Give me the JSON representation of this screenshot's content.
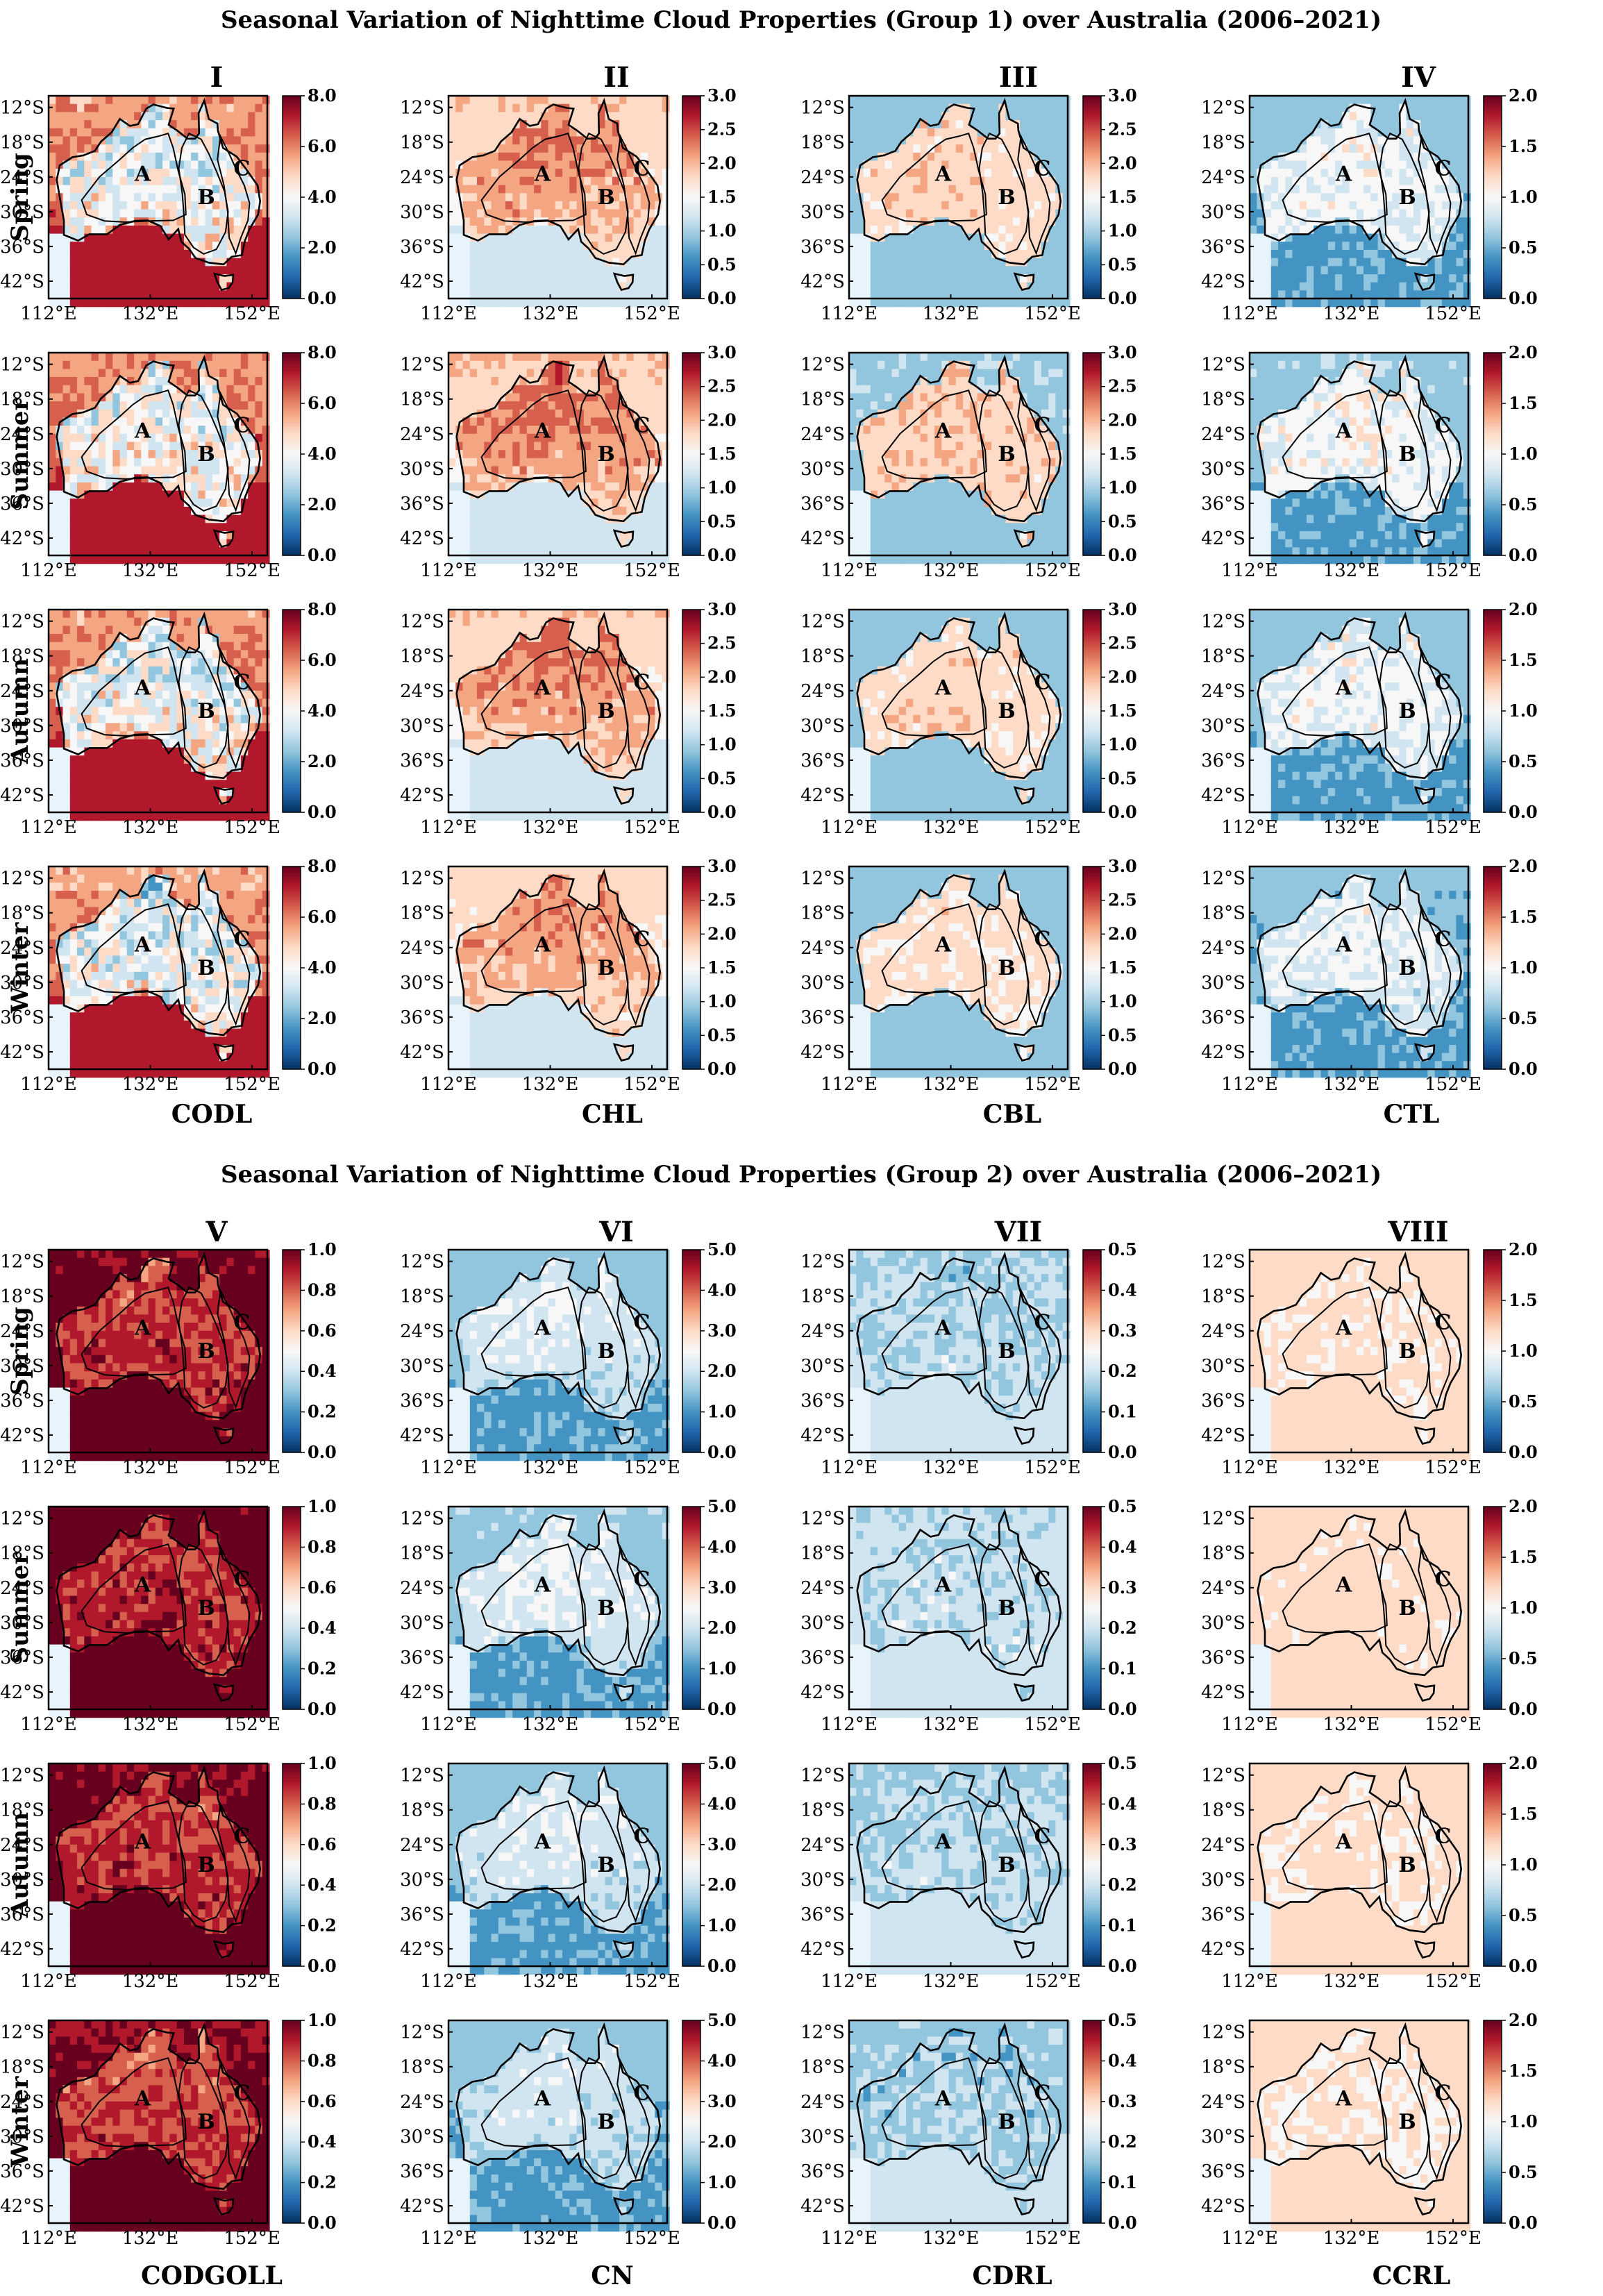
{
  "groups": [
    {
      "title": "Seasonal Variation of Nighttime Cloud Properties (Group 1) over Australia (2006–2021)",
      "panels": [
        {
          "roman": "I",
          "variable": "CODL",
          "cbar_ticks": [
            "0.0",
            "2.0",
            "4.0",
            "6.0",
            "8.0"
          ]
        },
        {
          "roman": "II",
          "variable": "CHL",
          "cbar_ticks": [
            "0.0",
            "0.5",
            "1.0",
            "1.5",
            "2.0",
            "2.5",
            "3.0"
          ]
        },
        {
          "roman": "III",
          "variable": "CBL",
          "cbar_ticks": [
            "0.0",
            "0.5",
            "1.0",
            "1.5",
            "2.0",
            "2.5",
            "3.0"
          ]
        },
        {
          "roman": "IV",
          "variable": "CTL",
          "cbar_ticks": [
            "0.0",
            "0.5",
            "1.0",
            "1.5",
            "2.0"
          ]
        }
      ]
    },
    {
      "title": "Seasonal Variation of Nighttime Cloud Properties (Group 2) over Australia (2006–2021)",
      "panels": [
        {
          "roman": "V",
          "variable": "CODGOLL",
          "cbar_ticks": [
            "0.0",
            "0.2",
            "0.4",
            "0.6",
            "0.8",
            "1.0"
          ]
        },
        {
          "roman": "VI",
          "variable": "CN",
          "cbar_ticks": [
            "0.0",
            "1.0",
            "2.0",
            "3.0",
            "4.0",
            "5.0"
          ]
        },
        {
          "roman": "VII",
          "variable": "CDRL",
          "cbar_ticks": [
            "0.0",
            "0.1",
            "0.2",
            "0.3",
            "0.4",
            "0.5"
          ]
        },
        {
          "roman": "VIII",
          "variable": "CCRL",
          "cbar_ticks": [
            "0.0",
            "0.5",
            "1.0",
            "1.5",
            "2.0"
          ]
        }
      ]
    }
  ],
  "seasons": [
    "Spring",
    "Summer",
    "Autumn",
    "Winter"
  ],
  "lat_ticks": [
    "12°S",
    "18°S",
    "24°S",
    "30°S",
    "36°S",
    "42°S"
  ],
  "lon_ticks": [
    "112°E",
    "132°E",
    "152°E"
  ],
  "region_labels": [
    "A",
    "B",
    "C"
  ],
  "chart_data": {
    "type": "heatmap",
    "title": "Seasonal Variation of Nighttime Cloud Properties over Australia (2006–2021)",
    "domain": {
      "lon_range_degE": [
        112,
        155
      ],
      "lat_range_degS": [
        10,
        45
      ]
    },
    "colormap": "RdBu_r",
    "panels": [
      {
        "group": 1,
        "roman": "I",
        "variable": "CODL",
        "cbar_range": [
          0,
          8
        ],
        "seasonal_mean_estimate": {
          "Spring": 5.5,
          "Summer": 5.0,
          "Autumn": 5.5,
          "Winter": 5.5
        }
      },
      {
        "group": 1,
        "roman": "II",
        "variable": "CHL",
        "cbar_range": [
          0,
          3
        ],
        "seasonal_mean_estimate": {
          "Spring": 2.2,
          "Summer": 2.3,
          "Autumn": 2.2,
          "Winter": 2.2
        }
      },
      {
        "group": 1,
        "roman": "III",
        "variable": "CBL",
        "cbar_range": [
          0,
          3
        ],
        "seasonal_mean_estimate": {
          "Spring": 1.7,
          "Summer": 1.7,
          "Autumn": 1.6,
          "Winter": 1.6
        }
      },
      {
        "group": 1,
        "roman": "IV",
        "variable": "CTL",
        "cbar_range": [
          0,
          2
        ],
        "seasonal_mean_estimate": {
          "Spring": 0.9,
          "Summer": 0.7,
          "Autumn": 0.7,
          "Winter": 0.6
        }
      },
      {
        "group": 2,
        "roman": "V",
        "variable": "CODGOLL",
        "cbar_range": [
          0,
          1
        ],
        "seasonal_mean_estimate": {
          "Spring": 0.85,
          "Summer": 0.8,
          "Autumn": 0.85,
          "Winter": 0.92
        }
      },
      {
        "group": 2,
        "roman": "VI",
        "variable": "CN",
        "cbar_range": [
          0,
          5
        ],
        "seasonal_mean_estimate": {
          "Spring": 1.8,
          "Summer": 2.0,
          "Autumn": 1.8,
          "Winter": 1.4
        }
      },
      {
        "group": 2,
        "roman": "VII",
        "variable": "CDRL",
        "cbar_range": [
          0,
          0.5
        ],
        "seasonal_mean_estimate": {
          "Spring": 0.2,
          "Summer": 0.18,
          "Autumn": 0.2,
          "Winter": 0.19
        }
      },
      {
        "group": 2,
        "roman": "VIII",
        "variable": "CCRL",
        "cbar_range": [
          0,
          2
        ],
        "seasonal_mean_estimate": {
          "Spring": 1.2,
          "Summer": 1.2,
          "Autumn": 1.2,
          "Winter": 1.2
        }
      }
    ],
    "regions": [
      "A",
      "B",
      "C"
    ]
  }
}
